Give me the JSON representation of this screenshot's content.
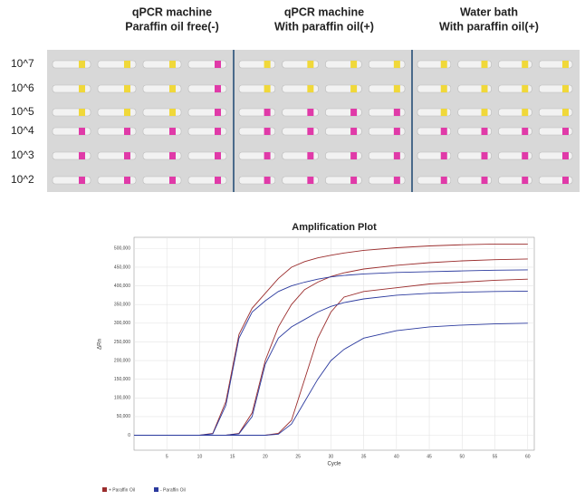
{
  "photo": {
    "column_titles": [
      [
        "qPCR machine",
        "Paraffin oil free(-)"
      ],
      [
        "qPCR machine",
        "With paraffin oil(+)"
      ],
      [
        "Water bath",
        "With paraffin oil(+)"
      ]
    ],
    "row_labels": [
      "10^7",
      "10^6",
      "10^5",
      "10^4",
      "10^3",
      "10^2"
    ]
  },
  "chart_data": {
    "type": "line",
    "title": "Amplification Plot",
    "x_label": "Cycle",
    "y_label": "ΔRn",
    "x": [
      0,
      10,
      12,
      14,
      16,
      18,
      20,
      22,
      24,
      26,
      28,
      30,
      32,
      35,
      40,
      45,
      50,
      55,
      60
    ],
    "series": [
      {
        "name": "+ Paraffin Oil",
        "color": "#9b2d2d",
        "curves": [
          [
            0,
            0,
            5000,
            90000,
            270000,
            340000,
            380000,
            420000,
            450000,
            465000,
            475000,
            482000,
            488000,
            495000,
            502000,
            507000,
            510000,
            512000,
            512000
          ],
          [
            0,
            0,
            0,
            0,
            5000,
            60000,
            200000,
            290000,
            350000,
            390000,
            410000,
            425000,
            435000,
            445000,
            455000,
            462000,
            467000,
            470000,
            472000
          ],
          [
            0,
            0,
            0,
            0,
            0,
            0,
            0,
            5000,
            40000,
            150000,
            260000,
            330000,
            370000,
            385000,
            395000,
            405000,
            410000,
            415000,
            418000
          ]
        ]
      },
      {
        "name": "- Paraffin Oil",
        "color": "#2b3a9e",
        "curves": [
          [
            0,
            0,
            4000,
            80000,
            260000,
            330000,
            360000,
            385000,
            400000,
            410000,
            418000,
            424000,
            428000,
            432000,
            436000,
            438000,
            440000,
            442000,
            443000
          ],
          [
            0,
            0,
            0,
            0,
            4000,
            50000,
            190000,
            260000,
            290000,
            310000,
            330000,
            345000,
            355000,
            365000,
            375000,
            380000,
            383000,
            385000,
            386000
          ],
          [
            0,
            0,
            0,
            0,
            0,
            0,
            0,
            3000,
            30000,
            90000,
            150000,
            200000,
            230000,
            260000,
            280000,
            290000,
            295000,
            298000,
            300000
          ]
        ]
      }
    ],
    "xlim": [
      0,
      61
    ],
    "ylim": [
      -40000,
      530000
    ],
    "xticks": [
      5,
      10,
      15,
      20,
      25,
      30,
      35,
      40,
      45,
      50,
      55,
      60
    ],
    "yticks": [
      0,
      {
        "value": 50000,
        "label": "50,000"
      },
      {
        "value": 100000,
        "label": "100,000"
      },
      {
        "value": 150000,
        "label": "150,000"
      },
      {
        "value": 200000,
        "label": "200,000"
      },
      {
        "value": 250000,
        "label": "250,000"
      },
      {
        "value": 300000,
        "label": "300,000"
      },
      {
        "value": 350000,
        "label": "350,000"
      },
      {
        "value": 400000,
        "label": "400,000"
      },
      {
        "value": 450000,
        "label": "450,000"
      },
      {
        "value": 500000,
        "label": "500,000"
      }
    ],
    "grid": true
  }
}
